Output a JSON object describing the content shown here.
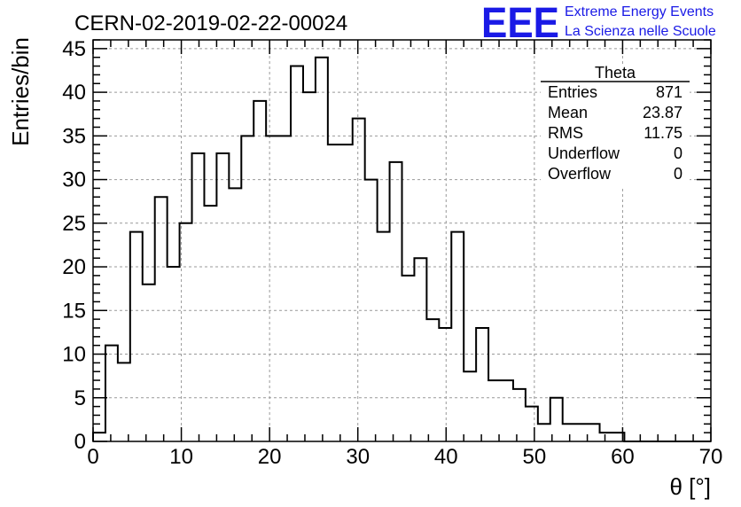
{
  "header": {
    "title": "CERN-02-2019-02-22-00024",
    "logo": {
      "mark": "EEE",
      "line1": "Extreme Energy Events",
      "line2": "La Scienza nelle Scuole",
      "color": "#1a1ae6"
    }
  },
  "stats_box": {
    "title": "Theta",
    "rows": [
      {
        "label": "Entries",
        "value": "871"
      },
      {
        "label": "Mean",
        "value": "23.87"
      },
      {
        "label": "RMS",
        "value": "11.75"
      },
      {
        "label": "Underflow",
        "value": "0"
      },
      {
        "label": "Overflow",
        "value": "0"
      }
    ]
  },
  "chart_data": {
    "type": "histogram-step",
    "title": "CERN-02-2019-02-22-00024",
    "xlabel": "θ [°]",
    "ylabel": "Entries/bin",
    "xlim": [
      0,
      70
    ],
    "ylim": [
      0,
      46
    ],
    "bin_width": 1.4,
    "x_ticks": [
      "0",
      "10",
      "20",
      "30",
      "40",
      "50",
      "60",
      "70"
    ],
    "y_ticks": [
      "0",
      "5",
      "10",
      "15",
      "20",
      "25",
      "30",
      "35",
      "40",
      "45"
    ],
    "grid": true,
    "values": [
      1,
      11,
      9,
      24,
      18,
      28,
      20,
      25,
      33,
      27,
      33,
      29,
      35,
      39,
      35,
      35,
      43,
      40,
      44,
      34,
      34,
      37,
      30,
      24,
      32,
      19,
      21,
      14,
      13,
      24,
      8,
      13,
      7,
      7,
      6,
      4,
      2,
      5,
      2,
      2,
      2,
      1,
      1,
      0,
      0,
      0,
      0,
      0,
      0,
      0
    ],
    "line_color": "#000000"
  }
}
